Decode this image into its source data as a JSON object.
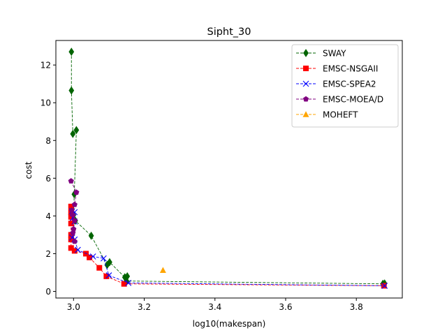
{
  "chart_data": {
    "type": "scatter",
    "title": "Sipht_30",
    "xlabel": "log10(makespan)",
    "ylabel": "cost",
    "xlim": [
      2.95,
      3.93
    ],
    "ylim": [
      -0.35,
      13.3
    ],
    "xticks": [
      3.0,
      3.2,
      3.4,
      3.6,
      3.8
    ],
    "xtick_labels": [
      "3.0",
      "3.2",
      "3.4",
      "3.6",
      "3.8"
    ],
    "yticks": [
      0,
      2,
      4,
      6,
      8,
      10,
      12
    ],
    "ytick_labels": [
      "0",
      "2",
      "4",
      "6",
      "8",
      "10",
      "12"
    ],
    "grid": false,
    "legend_position": "top-right",
    "series": [
      {
        "name": "SWAY",
        "color": "#006400",
        "marker": "diamond",
        "points": [
          [
            2.994,
            12.7
          ],
          [
            2.994,
            10.65
          ],
          [
            2.998,
            8.35
          ],
          [
            3.008,
            8.55
          ],
          [
            3.002,
            5.15
          ],
          [
            3.0,
            4.05
          ],
          [
            3.005,
            3.75
          ],
          [
            3.05,
            2.95
          ],
          [
            3.095,
            1.4
          ],
          [
            3.102,
            1.55
          ],
          [
            3.145,
            0.75
          ],
          [
            3.152,
            0.8
          ],
          [
            3.15,
            0.55
          ],
          [
            3.875,
            0.4
          ],
          [
            3.88,
            0.42
          ]
        ]
      },
      {
        "name": "EMSC-NSGAII",
        "color": "#ff0000",
        "marker": "square",
        "points": [
          [
            2.993,
            4.5
          ],
          [
            2.993,
            4.2
          ],
          [
            2.993,
            3.95
          ],
          [
            2.993,
            3.6
          ],
          [
            2.993,
            3.0
          ],
          [
            2.993,
            2.75
          ],
          [
            2.993,
            2.3
          ],
          [
            3.003,
            2.15
          ],
          [
            3.035,
            2.0
          ],
          [
            3.045,
            1.8
          ],
          [
            3.073,
            1.25
          ],
          [
            3.093,
            0.8
          ],
          [
            3.143,
            0.4
          ],
          [
            3.878,
            0.3
          ]
        ]
      },
      {
        "name": "EMSC-SPEA2",
        "color": "#0000ff",
        "marker": "x",
        "points": [
          [
            2.996,
            4.25
          ],
          [
            3.003,
            4.2
          ],
          [
            2.998,
            3.9
          ],
          [
            3.003,
            3.7
          ],
          [
            2.996,
            2.85
          ],
          [
            3.003,
            2.75
          ],
          [
            3.012,
            2.2
          ],
          [
            3.055,
            1.85
          ],
          [
            3.085,
            1.75
          ],
          [
            3.1,
            0.85
          ],
          [
            3.155,
            0.45
          ],
          [
            3.88,
            0.3
          ]
        ]
      },
      {
        "name": "EMSC-MOEA/D",
        "color": "#800080",
        "marker": "pentagon",
        "points": [
          [
            2.993,
            5.85
          ],
          [
            3.008,
            5.25
          ],
          [
            3.003,
            4.6
          ],
          [
            2.995,
            4.3
          ],
          [
            2.998,
            4.05
          ],
          [
            3.003,
            3.75
          ],
          [
            3.0,
            3.3
          ],
          [
            2.998,
            3.1
          ],
          [
            3.003,
            2.65
          ]
        ]
      },
      {
        "name": "MOHEFT",
        "color": "#ffa500",
        "marker": "triangle",
        "points": [
          [
            3.253,
            1.12
          ]
        ]
      }
    ]
  }
}
